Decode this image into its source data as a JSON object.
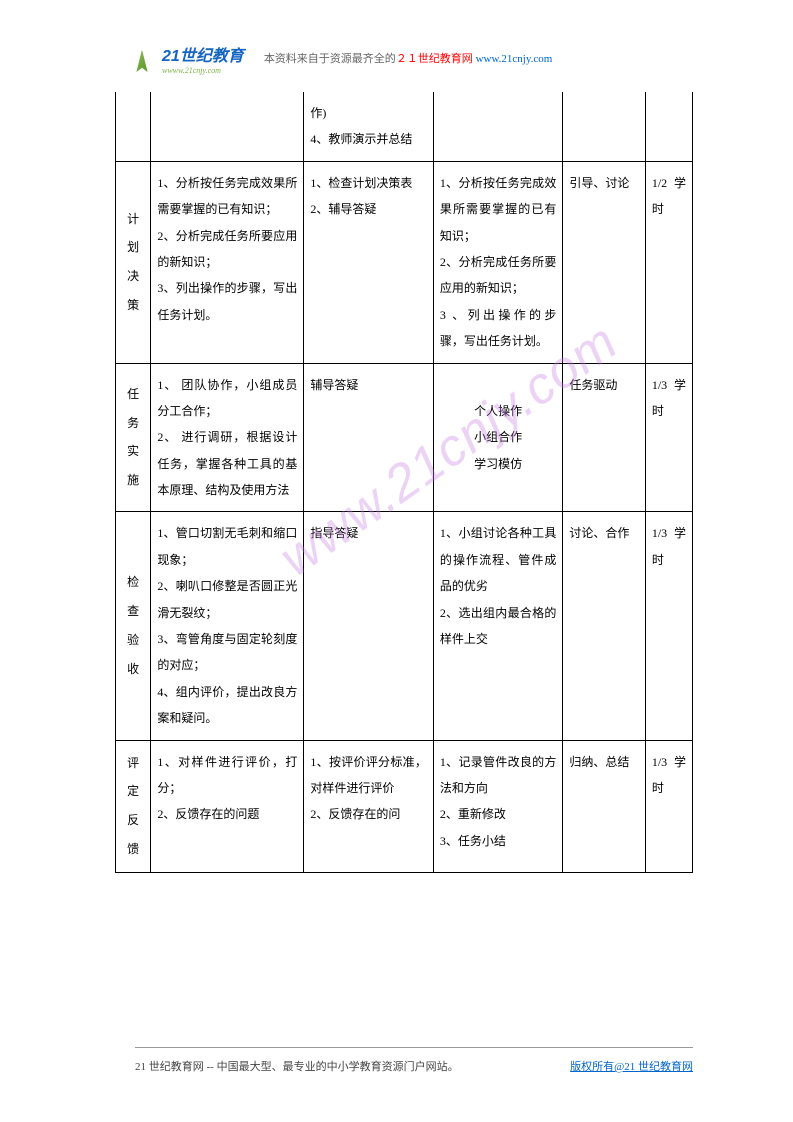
{
  "header": {
    "logo_text": "21世纪教育",
    "logo_sub": "wwww.21cnjy.com",
    "prefix": "本资料来自于资源最齐全的",
    "brand": "２１世纪教育网",
    "url": " www.21cnjy.com"
  },
  "watermark": "www.21cnjy.com",
  "table": {
    "col_widths": [
      "30px",
      "130px",
      "110px",
      "110px",
      "70px",
      "40px"
    ],
    "rows": [
      {
        "label": "",
        "c2": "",
        "c3": "作)\n4、教师演示并总结",
        "c4": "",
        "c5": "",
        "c6": ""
      },
      {
        "label": "计划决策",
        "c2": "1、分析按任务完成效果所需要掌握的已有知识；\n2、分析完成任务所要应用的新知识；\n3、列出操作的步骤，写出任务计划。",
        "c3": "1、检查计划决策表\n2、辅导答疑",
        "c4": "1、分析按任务完成效果所需要掌握的已有知识；\n2、分析完成任务所要应用的新知识；\n3 、列出操作的步骤，写出任务计划。",
        "c5": "引导、讨论",
        "c6": "1/2学时"
      },
      {
        "label": "任务实施",
        "c2": "1、 团队协作，小组成员分工合作；\n2、 进行调研，根据设计任务，掌握各种工具的基本原理、结构及使用方法",
        "c3": "辅导答疑",
        "c4": "个人操作\n小组合作\n学习模仿",
        "c4_centered": true,
        "c5": "任务驱动",
        "c6": "1/3学时"
      },
      {
        "label": "检查验收",
        "c2": "1、管口切割无毛刺和缩口现象；\n2、喇叭口修整是否圆正光滑无裂纹；\n3、弯管角度与固定轮刻度的对应；\n4、组内评价，提出改良方案和疑问。",
        "c3": "指导答疑",
        "c4": "1、小组讨论各种工具的操作流程、管件成品的优劣\n2、选出组内最合格的样件上交",
        "c5": "讨论、合作",
        "c6": "1/3学时"
      },
      {
        "label": "评定反馈",
        "c2": "1、对样件进行评价，打分；\n2、反馈存在的问题",
        "c3": "1、按评价评分标准，对样件进行评价\n2、反馈存在的问",
        "c4": "1、记录管件改良的方法和方向\n2、重新修改\n3、任务小结",
        "c5": "归纳、总结",
        "c6": "1/3学时"
      }
    ]
  },
  "footer": {
    "text": "21 世纪教育网 -- 中国最大型、最专业的中小学教育资源门户网站。",
    "link": "版权所有@21 世纪教育网"
  }
}
